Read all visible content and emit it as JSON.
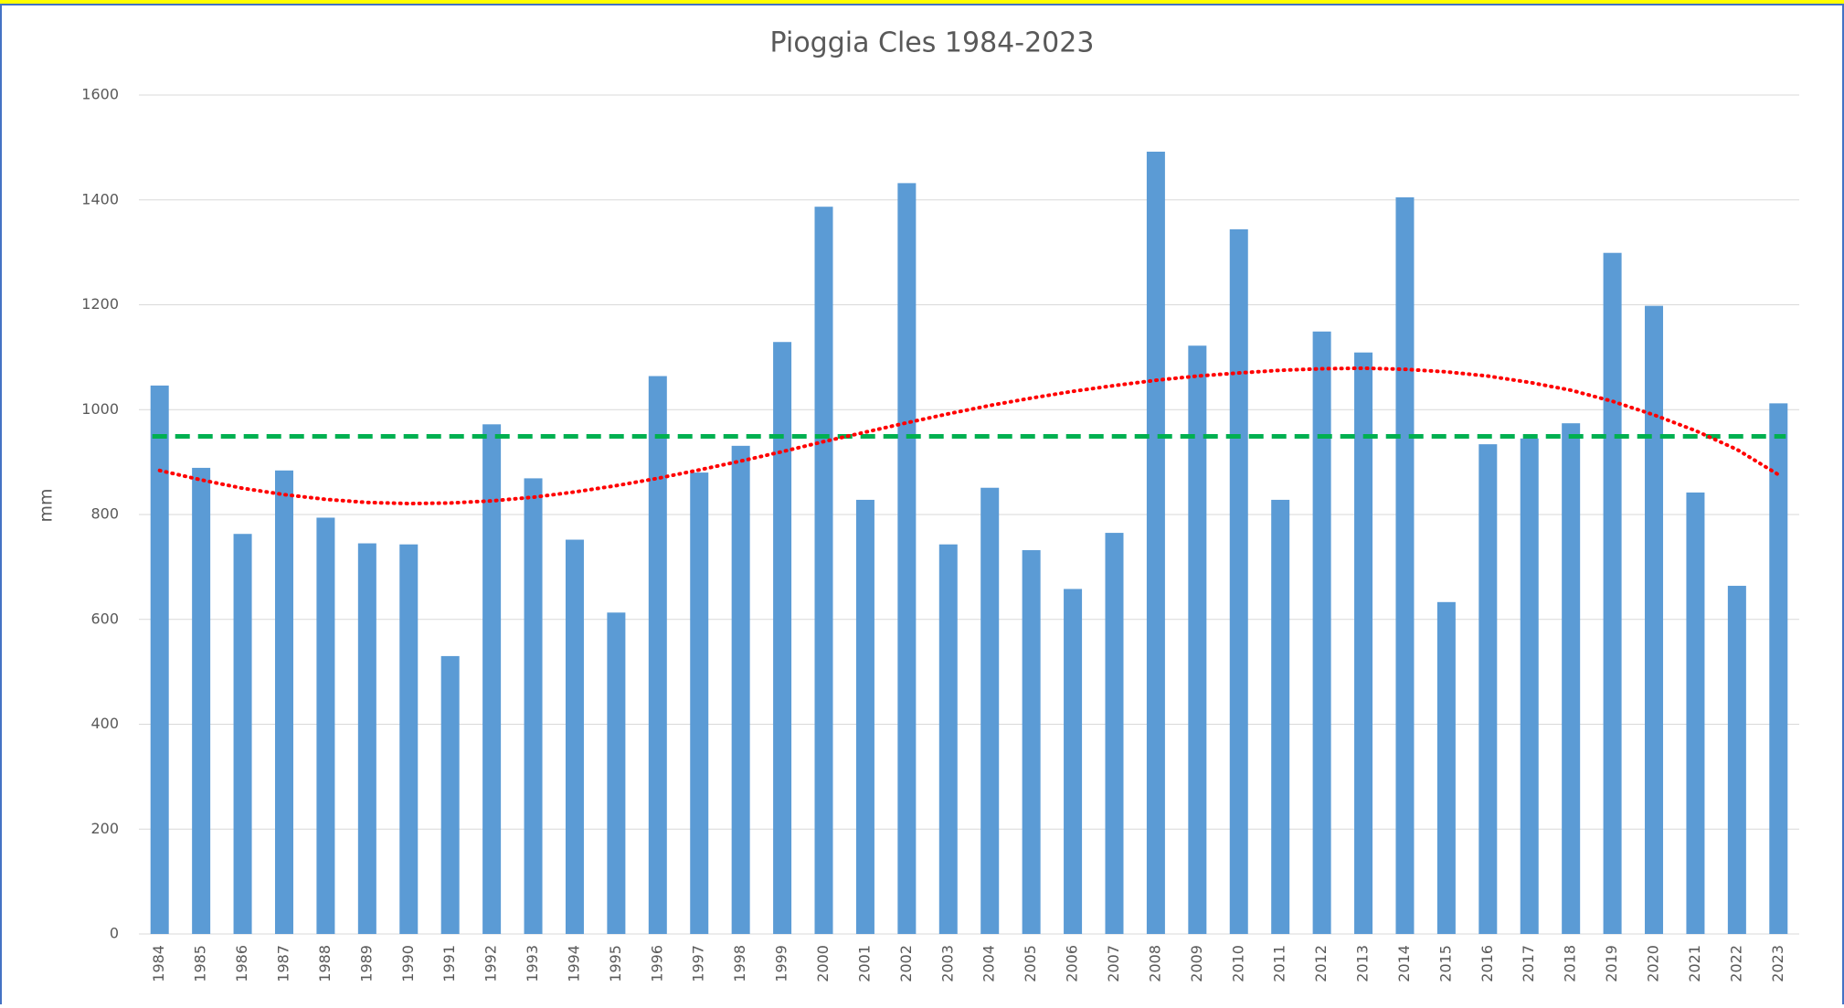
{
  "chart_data": {
    "type": "bar",
    "title": "Pioggia Cles 1984-2023",
    "y_label": "mm",
    "categories": [
      "1984",
      "1985",
      "1986",
      "1987",
      "1988",
      "1989",
      "1990",
      "1991",
      "1992",
      "1993",
      "1994",
      "1995",
      "1996",
      "1997",
      "1998",
      "1999",
      "2000",
      "2001",
      "2002",
      "2003",
      "2004",
      "2005",
      "2006",
      "2007",
      "2008",
      "2009",
      "2010",
      "2011",
      "2012",
      "2013",
      "2014",
      "2015",
      "2016",
      "2017",
      "2018",
      "2019",
      "2020",
      "2021",
      "2022",
      "2023"
    ],
    "values": [
      1046,
      889,
      763,
      884,
      794,
      745,
      743,
      530,
      972,
      869,
      752,
      613,
      1064,
      880,
      931,
      1129,
      1387,
      828,
      1432,
      743,
      851,
      732,
      658,
      765,
      1492,
      1122,
      1344,
      828,
      1149,
      1109,
      1405,
      633,
      934,
      945,
      974,
      1299,
      1198,
      842,
      664,
      1012
    ],
    "color": "#5b9bd5",
    "reference_line": {
      "value": 949,
      "color": "#00b050"
    },
    "trend": {
      "color": "#ff0000",
      "values": [
        884,
        866,
        850,
        838,
        829,
        823,
        821,
        822,
        826,
        833,
        843,
        855,
        869,
        885,
        902,
        920,
        939,
        957,
        975,
        992,
        1008,
        1022,
        1035,
        1046,
        1056,
        1064,
        1070,
        1075,
        1078,
        1079,
        1077,
        1072,
        1064,
        1052,
        1037,
        1016,
        990,
        960,
        924,
        876
      ]
    },
    "ylim": [
      0,
      1600
    ],
    "yticks": [
      0,
      200,
      400,
      600,
      800,
      1000,
      1200,
      1400,
      1600
    ],
    "grid": true
  }
}
